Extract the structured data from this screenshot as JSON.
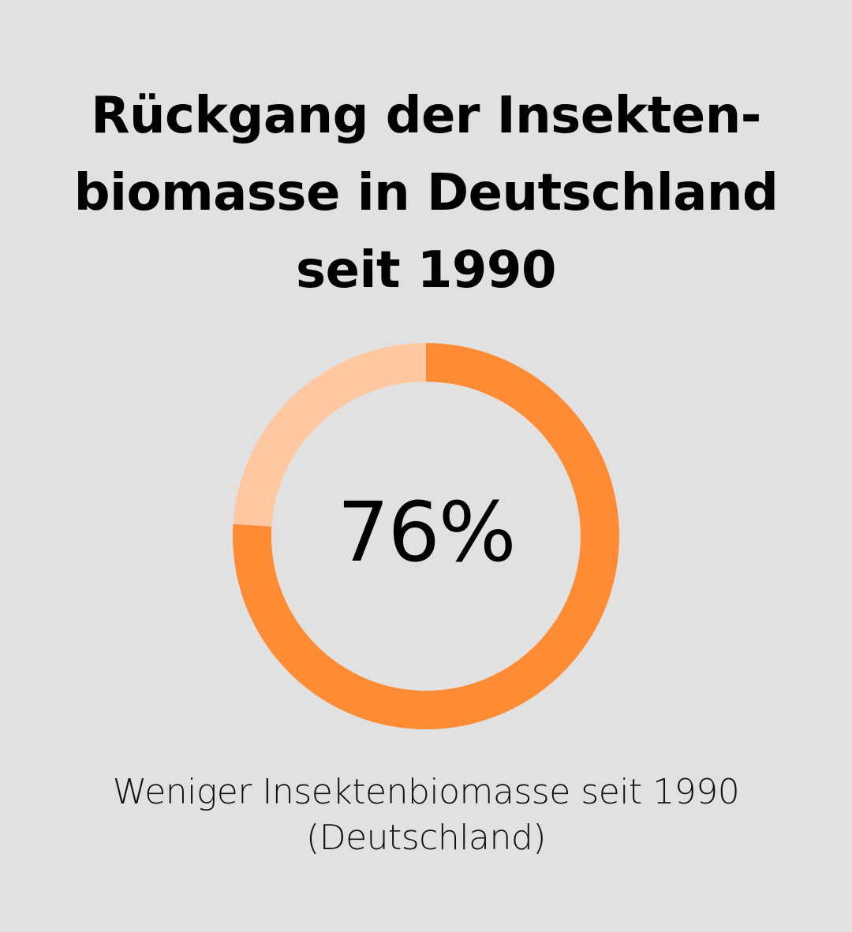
{
  "chart_data": {
    "type": "pie",
    "title_lines": [
      "Rückgang der Insekten-",
      "biomasse in Deutschland",
      "seit 1990"
    ],
    "value_percent": 76,
    "value_label": "76%",
    "slices": [
      {
        "value": 76,
        "color": "#ff8c35"
      },
      {
        "value": 24,
        "color": "#ffc8a0"
      }
    ],
    "caption_lines": [
      "Weniger Insektenbiomasse seit 1990",
      "(Deutschland)"
    ]
  },
  "colors": {
    "background": "#e1e1e1",
    "accent": "#ff8c35",
    "accent_light": "#ffc8a0"
  }
}
